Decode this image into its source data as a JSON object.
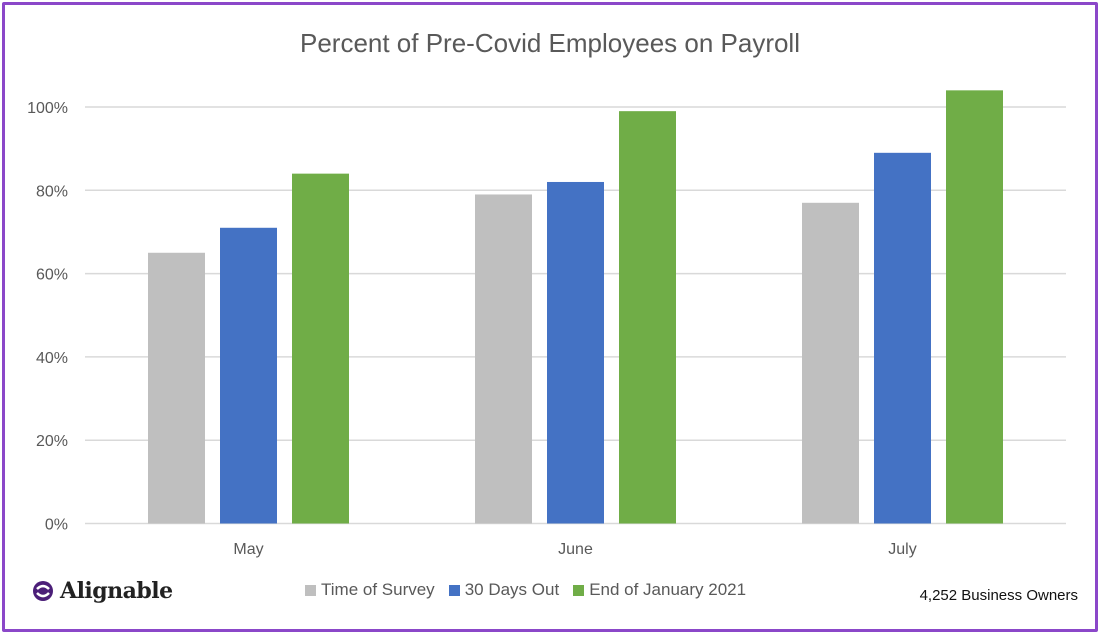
{
  "chart_data": {
    "type": "bar",
    "title": "Percent of Pre-Covid Employees on Payroll",
    "categories": [
      "May",
      "June",
      "July"
    ],
    "series": [
      {
        "name": "Time of Survey",
        "color": "#bfbfbf",
        "values": [
          65,
          79,
          77
        ]
      },
      {
        "name": "30 Days Out",
        "color": "#4472c4",
        "values": [
          71,
          82,
          89
        ]
      },
      {
        "name": "End of January 2021",
        "color": "#70ad47",
        "values": [
          84,
          99,
          104
        ]
      }
    ],
    "yticks": [
      "0%",
      "20%",
      "40%",
      "60%",
      "80%",
      "100%"
    ],
    "ylim": [
      0,
      100
    ],
    "grid": true,
    "legend": "bottom"
  },
  "logo": {
    "text": "Alignable",
    "color": "#4b1e78"
  },
  "note": "4,252 Business Owners",
  "border_color": "#8b47c9"
}
